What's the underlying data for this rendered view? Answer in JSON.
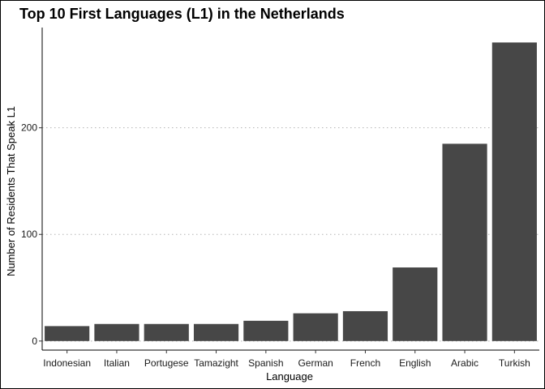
{
  "chart_data": {
    "type": "bar",
    "title": "Top 10 First Languages (L1) in the Netherlands",
    "xlabel": "Language",
    "ylabel": "Number of Residents That Speak L1",
    "categories": [
      "Indonesian",
      "Italian",
      "Portugese",
      "Tamazight",
      "Spanish",
      "German",
      "French",
      "English",
      "Arabic",
      "Turkish"
    ],
    "values": [
      14,
      16,
      16,
      16,
      19,
      26,
      28,
      69,
      185,
      280
    ],
    "ylim": [
      0,
      290
    ],
    "yticks": [
      0,
      100,
      200
    ],
    "grid": "horizontal dotted at y ticks",
    "legend": "none",
    "bar_color": "#474747"
  }
}
